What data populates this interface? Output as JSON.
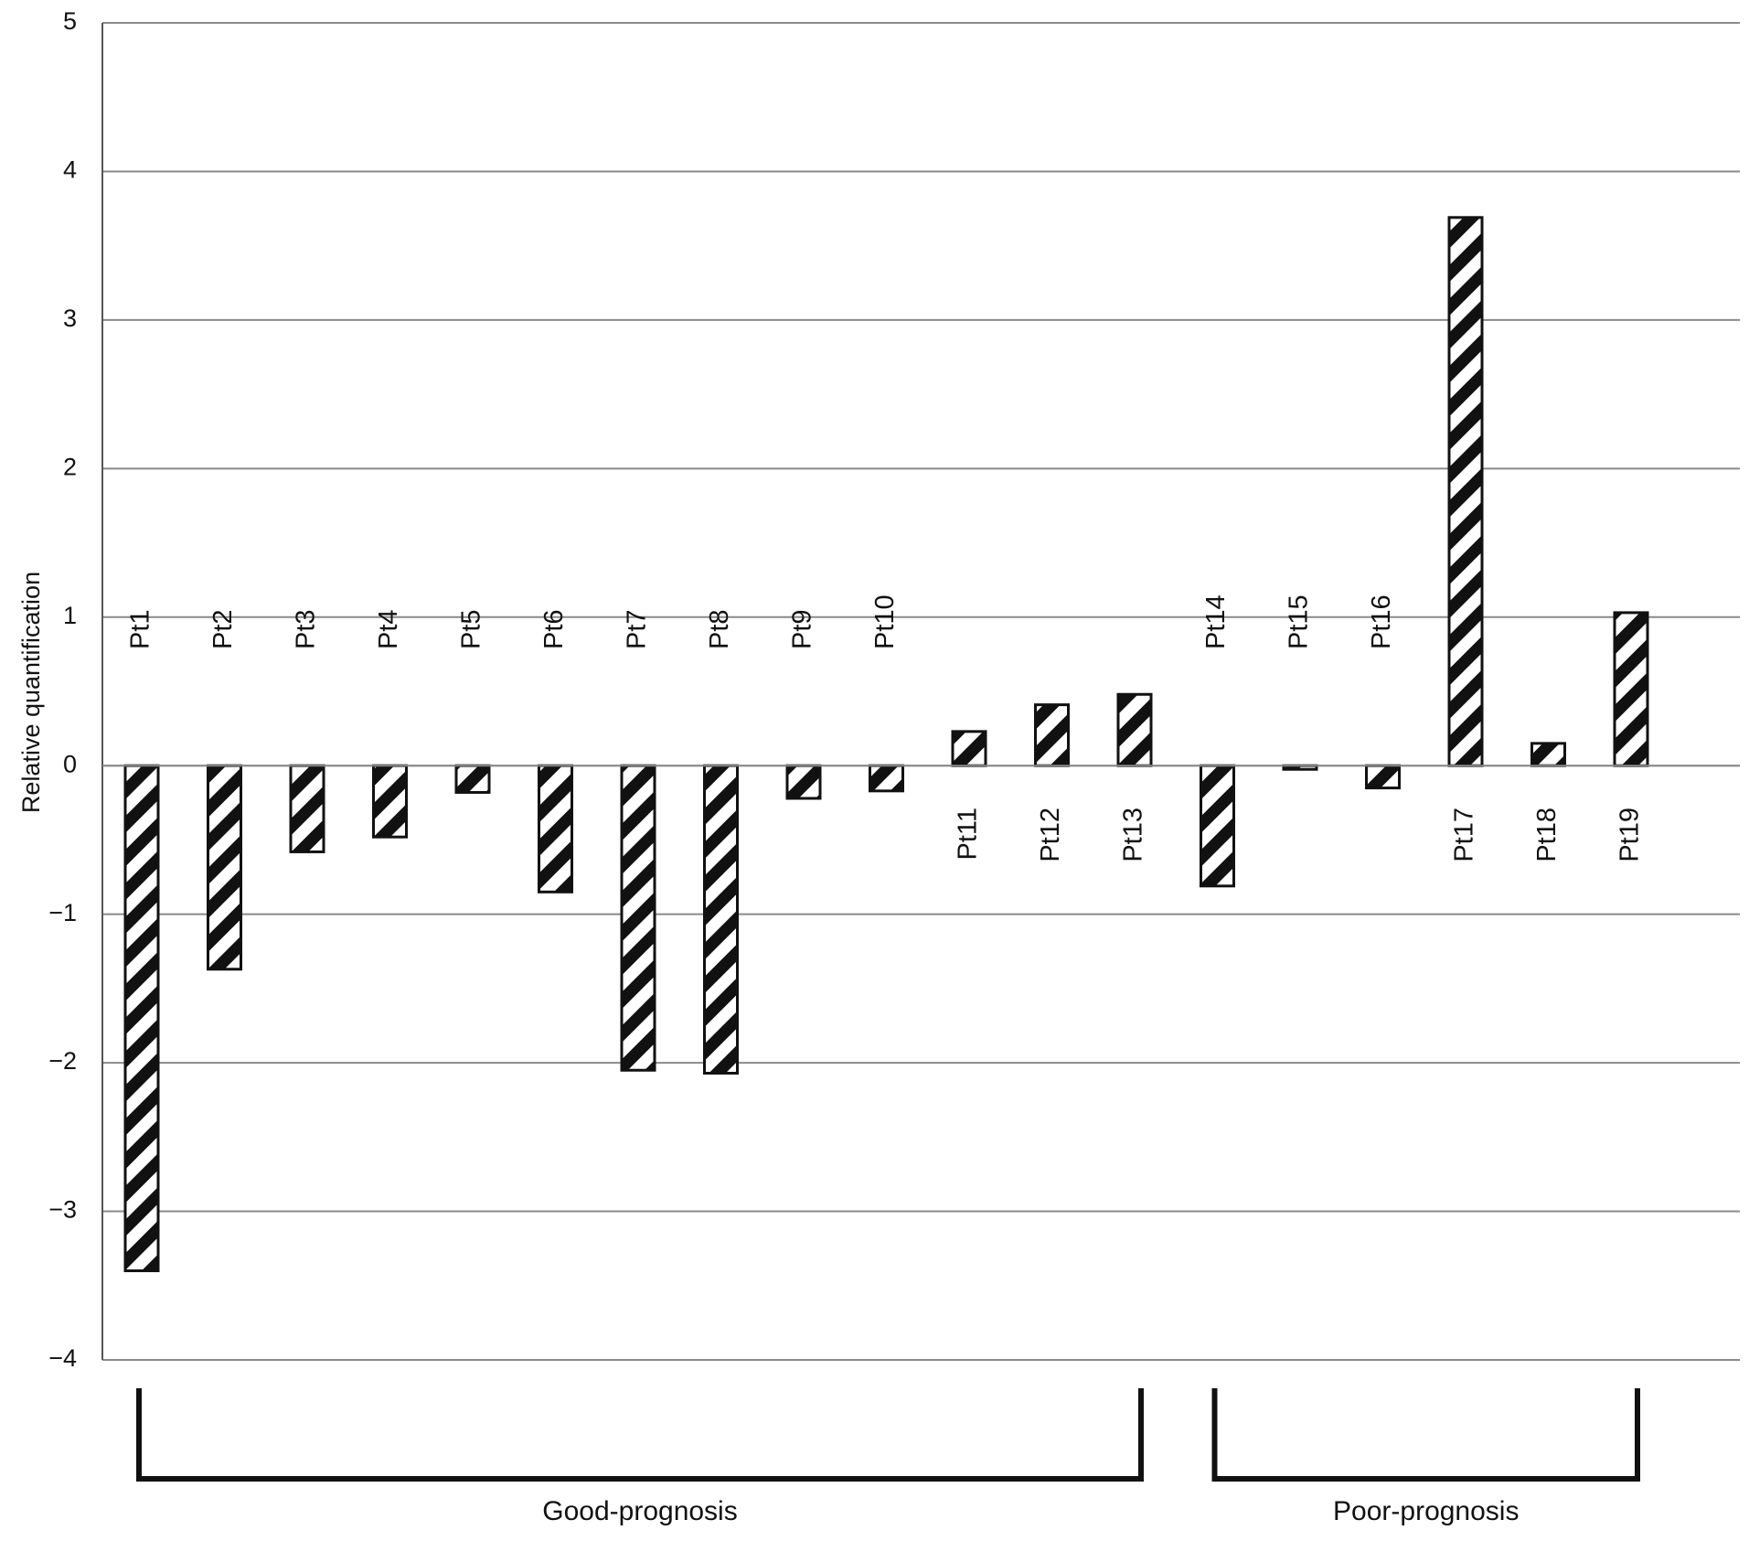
{
  "chart_data": {
    "type": "bar",
    "categories": [
      "Pt1",
      "Pt2",
      "Pt3",
      "Pt4",
      "Pt5",
      "Pt6",
      "Pt7",
      "Pt8",
      "Pt9",
      "Pt10",
      "Pt11",
      "Pt12",
      "Pt13",
      "Pt14",
      "Pt15",
      "Pt16",
      "Pt17",
      "Pt18",
      "Pt19"
    ],
    "values": [
      -3.4,
      -1.37,
      -0.58,
      -0.48,
      -0.18,
      -0.85,
      -2.05,
      -2.07,
      -0.22,
      -0.17,
      0.23,
      0.41,
      0.48,
      -0.81,
      -0.02,
      -0.15,
      3.69,
      0.15,
      1.03
    ],
    "title": "",
    "xlabel": "",
    "ylabel": "Relative quantification",
    "ylim": [
      -4,
      5
    ],
    "yticks": [
      "5",
      "4",
      "3",
      "2",
      "1",
      "0",
      "−1",
      "−2",
      "−3",
      "−4"
    ],
    "grid": "horizontal",
    "bar_fill": "diagonal black-and-white hatch",
    "colors": {
      "bar_stroke": "#111111",
      "hatch": "#111111",
      "grid": "#8a8a8a",
      "axis": "#555555",
      "bracket": "#111111"
    },
    "groups": [
      {
        "label": "Good-prognosis",
        "from": 0,
        "to": 12
      },
      {
        "label": "Poor-prognosis",
        "from": 13,
        "to": 18
      }
    ]
  }
}
